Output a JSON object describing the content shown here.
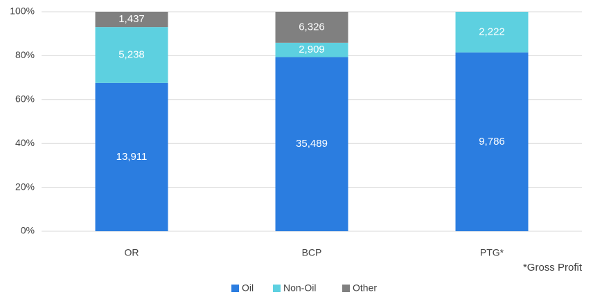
{
  "chart_data": {
    "type": "bar",
    "stacking": "percent",
    "categories": [
      "OR",
      "BCP",
      "PTG*"
    ],
    "series": [
      {
        "name": "Oil",
        "color": "#2b7de0",
        "values": [
          13911,
          35489,
          9786
        ],
        "value_labels": [
          "13,911",
          "35,489",
          "9,786"
        ]
      },
      {
        "name": "Non-Oil",
        "color": "#5dd0e0",
        "values": [
          5238,
          2909,
          2222
        ],
        "value_labels": [
          "5,238",
          "2,909",
          "2,222"
        ]
      },
      {
        "name": "Other",
        "color": "#808080",
        "values": [
          1437,
          6326,
          null
        ],
        "value_labels": [
          "1,437",
          "6,326",
          null
        ]
      }
    ],
    "ylim": [
      0,
      100
    ],
    "yticks": [
      {
        "value": 0,
        "label": "0%"
      },
      {
        "value": 20,
        "label": "20%"
      },
      {
        "value": 40,
        "label": "40%"
      },
      {
        "value": 60,
        "label": "60%"
      },
      {
        "value": 80,
        "label": "80%"
      },
      {
        "value": 100,
        "label": "100%"
      }
    ],
    "grid": true,
    "legend": "bottom",
    "annotation": "*Gross Profit"
  }
}
